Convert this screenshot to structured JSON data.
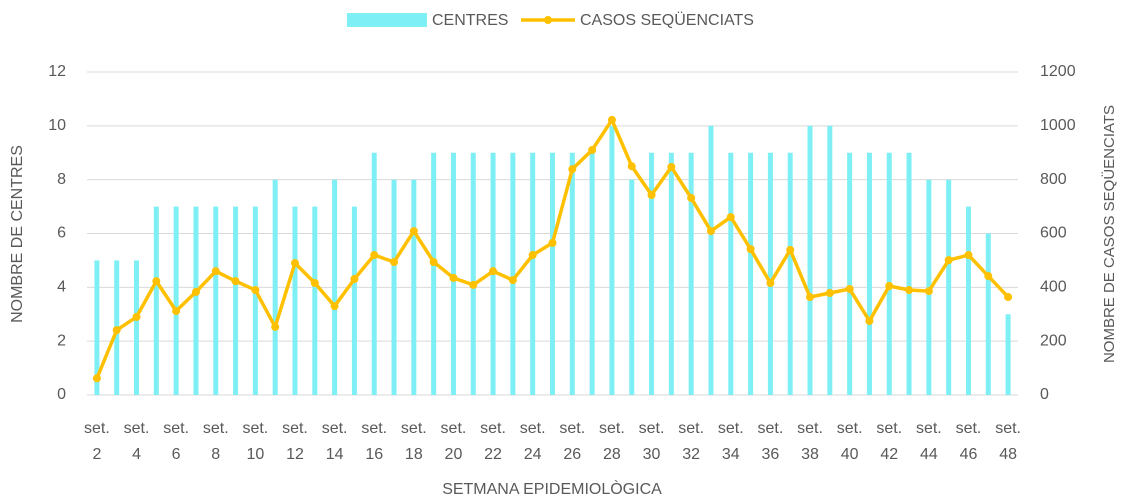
{
  "chart_data": {
    "type": "combo",
    "x_label": "SETMANA EPIDEMIOLÒGICA",
    "y_label": "NOMBRE DE CENTRES",
    "y2_label": "NOMBRE DE CASOS SEQÜENCIATS",
    "categories": [
      "set. 2",
      null,
      "set. 4",
      null,
      "set. 6",
      null,
      "set. 8",
      null,
      "set. 10",
      null,
      "set. 12",
      null,
      "set. 14",
      null,
      "set. 16",
      null,
      "set. 18",
      null,
      "set. 20",
      null,
      "set. 22",
      null,
      "set. 24",
      null,
      "set. 26",
      null,
      "set. 28",
      null,
      "set. 30",
      null,
      "set. 32",
      null,
      "set. 34",
      null,
      "set. 36",
      null,
      "set. 38",
      null,
      "set. 40",
      null,
      "set. 42",
      null,
      "set. 44",
      null,
      "set. 46",
      null,
      "set. 48"
    ],
    "series": [
      {
        "name": "CENTRES",
        "type": "bar",
        "color": "#7eeff5",
        "values": [
          5,
          5,
          5,
          7,
          7,
          7,
          7,
          7,
          7,
          8,
          7,
          7,
          8,
          7,
          9,
          8,
          8,
          9,
          9,
          9,
          9,
          9,
          9,
          9,
          9,
          9,
          10,
          8,
          9,
          9,
          9,
          10,
          9,
          9,
          9,
          9,
          10,
          10,
          9,
          9,
          9,
          9,
          8,
          8,
          7,
          6,
          3
        ]
      },
      {
        "name": "CASOS SEQÜENCIATS",
        "type": "line",
        "axis": "y2",
        "color": "#ffc000",
        "values": [
          62,
          241,
          290,
          423,
          312,
          383,
          460,
          423,
          390,
          253,
          490,
          416,
          330,
          431,
          520,
          494,
          609,
          494,
          435,
          409,
          460,
          427,
          520,
          565,
          839,
          910,
          1022,
          850,
          743,
          847,
          732,
          609,
          661,
          542,
          416,
          539,
          364,
          379,
          394,
          275,
          405,
          390,
          386,
          501,
          520,
          442,
          364
        ]
      }
    ],
    "ylim": [
      0,
      12
    ],
    "yticks": [
      0,
      2,
      4,
      6,
      8,
      10,
      12
    ],
    "y2lim": [
      0,
      1200
    ],
    "y2ticks": [
      0,
      200,
      400,
      600,
      800,
      1000,
      1200
    ],
    "grid": true,
    "legend": "top"
  }
}
